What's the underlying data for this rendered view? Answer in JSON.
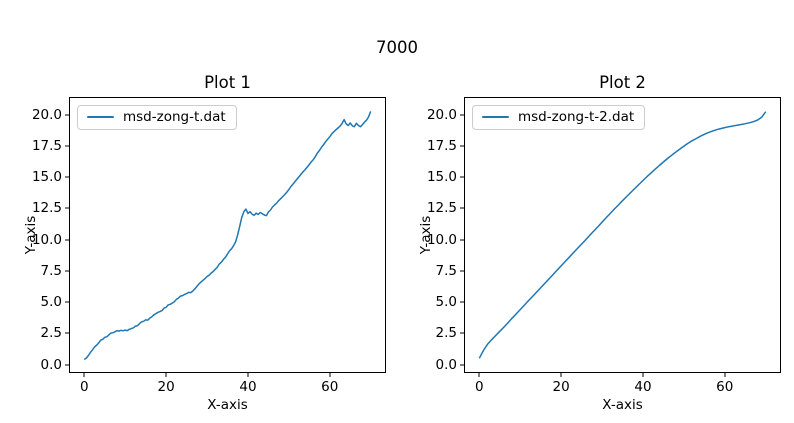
{
  "figure": {
    "suptitle": "7000",
    "background": "#ffffff",
    "accent_color": "#1f77b4"
  },
  "chart_data": [
    {
      "type": "line",
      "title": "Plot 1",
      "xlabel": "X-axis",
      "ylabel": "Y-axis",
      "grid": false,
      "legend_position": "upper-left",
      "xlim": [
        -3.5,
        73.5
      ],
      "ylim": [
        -0.6,
        21.35
      ],
      "xticks": [
        0,
        20,
        40,
        60
      ],
      "xtick_labels": [
        "0",
        "20",
        "40",
        "60"
      ],
      "yticks": [
        0,
        2.5,
        5,
        7.5,
        10,
        12.5,
        15,
        17.5,
        20
      ],
      "ytick_labels": [
        "0.0",
        "2.5",
        "5.0",
        "7.5",
        "10.0",
        "12.5",
        "15.0",
        "17.5",
        "20.0"
      ],
      "series": [
        {
          "name": "msd-zong-t.dat",
          "color": "#1f77b4",
          "x0": 0,
          "dx": 0.5,
          "y": [
            0.4,
            0.52,
            0.72,
            0.98,
            1.18,
            1.4,
            1.55,
            1.72,
            1.95,
            2.02,
            2.18,
            2.22,
            2.38,
            2.52,
            2.55,
            2.62,
            2.72,
            2.68,
            2.74,
            2.7,
            2.76,
            2.72,
            2.82,
            2.88,
            2.94,
            3.08,
            3.12,
            3.28,
            3.42,
            3.46,
            3.58,
            3.55,
            3.72,
            3.82,
            3.98,
            4.08,
            4.18,
            4.24,
            4.32,
            4.52,
            4.58,
            4.78,
            4.82,
            4.92,
            5.02,
            5.22,
            5.32,
            5.48,
            5.52,
            5.62,
            5.68,
            5.78,
            5.76,
            5.88,
            6.05,
            6.25,
            6.45,
            6.6,
            6.75,
            6.88,
            7.05,
            7.15,
            7.32,
            7.45,
            7.62,
            7.8,
            8.05,
            8.2,
            8.42,
            8.6,
            8.85,
            9.1,
            9.28,
            9.52,
            9.85,
            10.4,
            11.1,
            11.8,
            12.25,
            12.45,
            12.1,
            12.25,
            12.05,
            11.95,
            12.12,
            12.02,
            12.18,
            12.08,
            11.98,
            11.92,
            12.22,
            12.38,
            12.62,
            12.78,
            12.92,
            13.12,
            13.28,
            13.45,
            13.62,
            13.8,
            14.02,
            14.25,
            14.45,
            14.65,
            14.85,
            15.05,
            15.25,
            15.45,
            15.62,
            15.82,
            16.02,
            16.25,
            16.42,
            16.68,
            16.95,
            17.15,
            17.42,
            17.62,
            17.85,
            18.05,
            18.25,
            18.48,
            18.65,
            18.8,
            18.95,
            19.1,
            19.3,
            19.62,
            19.28,
            19.15,
            19.35,
            19.12,
            19.05,
            19.32,
            19.15,
            19.05,
            19.22,
            19.42,
            19.58,
            19.85,
            20.28
          ]
        }
      ]
    },
    {
      "type": "line",
      "title": "Plot 2",
      "xlabel": "X-axis",
      "ylabel": "Y-axis",
      "grid": false,
      "legend_position": "upper-left",
      "xlim": [
        -3.5,
        73.5
      ],
      "ylim": [
        -0.6,
        21.35
      ],
      "xticks": [
        0,
        20,
        40,
        60
      ],
      "xtick_labels": [
        "0",
        "20",
        "40",
        "60"
      ],
      "yticks": [
        0,
        2.5,
        5,
        7.5,
        10,
        12.5,
        15,
        17.5,
        20
      ],
      "ytick_labels": [
        "0.0",
        "2.5",
        "5.0",
        "7.5",
        "10.0",
        "12.5",
        "15.0",
        "17.5",
        "20.0"
      ],
      "series": [
        {
          "name": "msd-zong-t-2.dat",
          "color": "#1f77b4",
          "x0": 0,
          "dx": 1,
          "y": [
            0.5,
            1.12,
            1.62,
            1.98,
            2.32,
            2.66,
            3.0,
            3.35,
            3.7,
            4.05,
            4.4,
            4.75,
            5.1,
            5.45,
            5.8,
            6.15,
            6.5,
            6.85,
            7.2,
            7.55,
            7.9,
            8.25,
            8.6,
            8.95,
            9.3,
            9.65,
            10.0,
            10.35,
            10.7,
            11.05,
            11.4,
            11.75,
            12.1,
            12.45,
            12.78,
            13.12,
            13.45,
            13.78,
            14.1,
            14.42,
            14.74,
            15.05,
            15.35,
            15.65,
            15.94,
            16.22,
            16.5,
            16.76,
            17.02,
            17.26,
            17.5,
            17.72,
            17.92,
            18.1,
            18.28,
            18.44,
            18.58,
            18.7,
            18.81,
            18.9,
            18.98,
            19.05,
            19.11,
            19.17,
            19.23,
            19.29,
            19.36,
            19.45,
            19.58,
            19.8,
            20.25
          ]
        }
      ]
    }
  ]
}
